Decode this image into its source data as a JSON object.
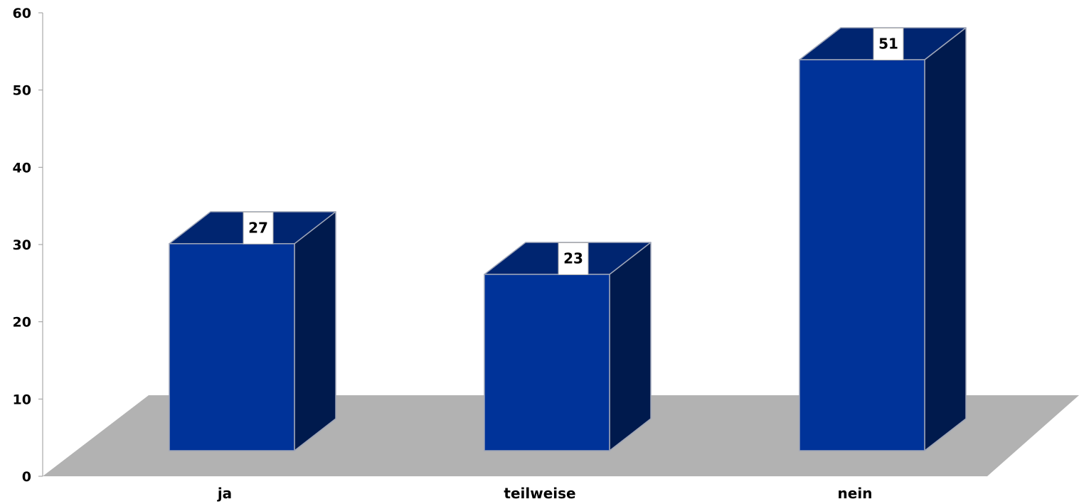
{
  "chart_data": {
    "type": "bar",
    "style": "3d",
    "categories": [
      "ja",
      "teilweise",
      "nein"
    ],
    "values": [
      27,
      23,
      51
    ],
    "title": "",
    "xlabel": "",
    "ylabel": "",
    "ylim": [
      0,
      60
    ],
    "yticks": [
      0,
      10,
      20,
      30,
      40,
      50,
      60
    ],
    "grid": false,
    "legend": "none",
    "data_labels": true,
    "colors": {
      "bar_front": "#003399",
      "bar_side": "#001a4d",
      "bar_top": "#002570",
      "bar_edge": "#9fa6b8",
      "floor": "#b2b2b2",
      "label_box": "#ffffff"
    }
  }
}
